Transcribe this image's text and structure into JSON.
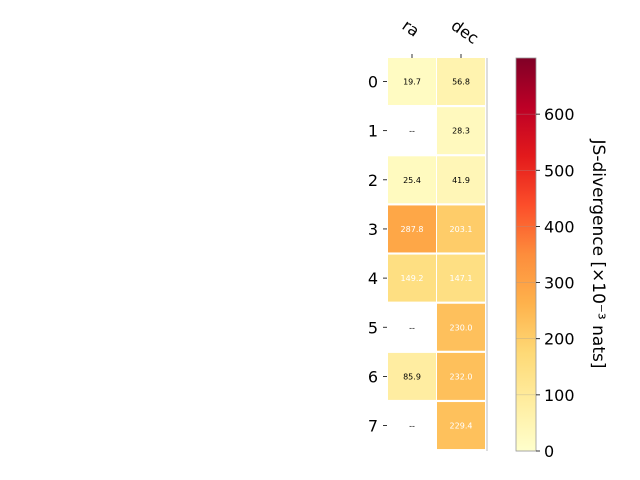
{
  "chart_data": {
    "type": "heatmap",
    "columns": [
      "ra",
      "dec"
    ],
    "rows": [
      "0",
      "1",
      "2",
      "3",
      "4",
      "5",
      "6",
      "7"
    ],
    "values": [
      [
        19.7,
        56.8
      ],
      [
        null,
        28.3
      ],
      [
        25.4,
        41.9
      ],
      [
        287.8,
        203.1
      ],
      [
        149.2,
        147.1
      ],
      [
        null,
        230.0
      ],
      [
        85.9,
        232.0
      ],
      [
        null,
        229.4
      ]
    ],
    "cell_labels": [
      [
        "19.7",
        "56.8"
      ],
      [
        "--",
        "28.3"
      ],
      [
        "25.4",
        "41.9"
      ],
      [
        "287.8",
        "203.1"
      ],
      [
        "149.2",
        "147.1"
      ],
      [
        "--",
        "230.0"
      ],
      [
        "85.9",
        "232.0"
      ],
      [
        "--",
        "229.4"
      ]
    ],
    "colorbar": {
      "label": "JS-divergence [×10⁻³ nats]",
      "range": [
        0,
        700
      ],
      "ticks": [
        0,
        100,
        200,
        300,
        400,
        500,
        600
      ],
      "colormap": "YlOrRd",
      "colors": [
        "#ffffcc",
        "#ffeda0",
        "#fed976",
        "#feb24c",
        "#fd8d3c",
        "#fc4e2a",
        "#e31a1c",
        "#bd0026",
        "#800026"
      ]
    }
  }
}
